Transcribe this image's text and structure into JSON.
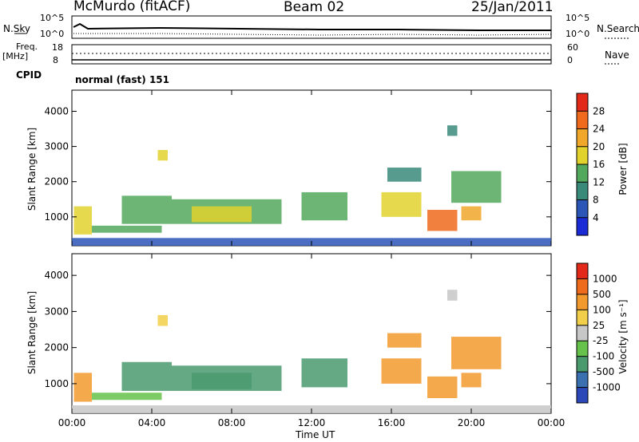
{
  "header": {
    "station": "McMurdo (fitACF)",
    "beam": "Beam 02",
    "date": "25/Jan/2011"
  },
  "strip_labels": {
    "nsky": "N.Sky",
    "nsky_hi": "10^5",
    "nsky_lo": "10^0",
    "nsearch": "N.Search",
    "nsearch_hi": "10^5",
    "nsearch_lo": "10^0",
    "freq_line1": "Freq.",
    "freq_line2": "[MHz]",
    "freq_hi": "18",
    "freq_lo": "8",
    "nave": "Nave",
    "nave_hi": "60",
    "nave_lo": "0",
    "cpid": "CPID",
    "cpid_value": "normal (fast) 151"
  },
  "chart_data": [
    {
      "type": "heatmap",
      "panel": "power",
      "ylabel": "Slant Range [km]",
      "xlabel": "",
      "yticks": [
        "1000",
        "2000",
        "3000",
        "4000"
      ],
      "ylim": [
        180,
        4600
      ],
      "xlim": [
        0,
        24
      ],
      "colorbar_label": "Power [dB]",
      "colorbar_ticks": [
        "4",
        "8",
        "12",
        "16",
        "20",
        "24",
        "28"
      ],
      "colorbar_colors": [
        "#1a2bd6",
        "#2c55b8",
        "#3a8a7a",
        "#52a85c",
        "#e2d22e",
        "#f0a72a",
        "#ef6a1c",
        "#e32a1a"
      ],
      "echo_regions": [
        {
          "t0": 0.1,
          "t1": 1.0,
          "r0": 500,
          "r1": 1300,
          "level": 4
        },
        {
          "t0": 1.0,
          "t1": 4.5,
          "r0": 550,
          "r1": 750,
          "level": 3
        },
        {
          "t0": 2.5,
          "t1": 5.0,
          "r0": 800,
          "r1": 1600,
          "level": 3
        },
        {
          "t0": 4.3,
          "t1": 4.8,
          "r0": 2600,
          "r1": 2900,
          "level": 4
        },
        {
          "t0": 5.0,
          "t1": 10.5,
          "r0": 800,
          "r1": 1500,
          "level": 3
        },
        {
          "t0": 6.0,
          "t1": 9.0,
          "r0": 850,
          "r1": 1300,
          "level": 4
        },
        {
          "t0": 11.5,
          "t1": 13.8,
          "r0": 900,
          "r1": 1700,
          "level": 3
        },
        {
          "t0": 15.5,
          "t1": 17.5,
          "r0": 1000,
          "r1": 1700,
          "level": 4
        },
        {
          "t0": 15.8,
          "t1": 17.5,
          "r0": 2000,
          "r1": 2400,
          "level": 2
        },
        {
          "t0": 17.8,
          "t1": 19.3,
          "r0": 600,
          "r1": 1200,
          "level": 6
        },
        {
          "t0": 19.5,
          "t1": 20.5,
          "r0": 900,
          "r1": 1300,
          "level": 5
        },
        {
          "t0": 19.0,
          "t1": 21.5,
          "r0": 1400,
          "r1": 2300,
          "level": 3
        },
        {
          "t0": 18.8,
          "t1": 19.3,
          "r0": 3300,
          "r1": 3600,
          "level": 2
        },
        {
          "t0": 0.0,
          "t1": 24.0,
          "r0": 180,
          "r1": 400,
          "level": 1
        }
      ]
    },
    {
      "type": "heatmap",
      "panel": "velocity",
      "ylabel": "Slant Range [km]",
      "xlabel": "Time UT",
      "yticks": [
        "1000",
        "2000",
        "3000",
        "4000"
      ],
      "ylim": [
        180,
        4600
      ],
      "xlim": [
        0,
        24
      ],
      "xticks": [
        "00:00",
        "04:00",
        "08:00",
        "12:00",
        "16:00",
        "20:00",
        "00:00"
      ],
      "colorbar_label": "Velocity [m s⁻¹]",
      "colorbar_ticks": [
        "1000",
        "500",
        "100",
        "25",
        "-25",
        "-100",
        "-500",
        "-1000"
      ],
      "colorbar_colors": [
        "#2c48b8",
        "#3a6fb0",
        "#4a9a6e",
        "#66c24a",
        "#c7c7c7",
        "#f2cf4a",
        "#f29a2e",
        "#ee6a1c",
        "#e32a1a"
      ],
      "echo_regions": [
        {
          "t0": 0.1,
          "t1": 1.0,
          "r0": 500,
          "r1": 1300,
          "level": 6
        },
        {
          "t0": 1.0,
          "t1": 4.5,
          "r0": 550,
          "r1": 750,
          "level": 3
        },
        {
          "t0": 2.5,
          "t1": 5.0,
          "r0": 800,
          "r1": 1600,
          "level": 2
        },
        {
          "t0": 4.3,
          "t1": 4.8,
          "r0": 2600,
          "r1": 2900,
          "level": 5
        },
        {
          "t0": 5.0,
          "t1": 10.5,
          "r0": 800,
          "r1": 1500,
          "level": 2
        },
        {
          "t0": 6.0,
          "t1": 9.0,
          "r0": 850,
          "r1": 1300,
          "level": 2
        },
        {
          "t0": 11.5,
          "t1": 13.8,
          "r0": 900,
          "r1": 1700,
          "level": 2
        },
        {
          "t0": 15.5,
          "t1": 17.5,
          "r0": 1000,
          "r1": 1700,
          "level": 6
        },
        {
          "t0": 15.8,
          "t1": 17.5,
          "r0": 2000,
          "r1": 2400,
          "level": 6
        },
        {
          "t0": 17.8,
          "t1": 19.3,
          "r0": 600,
          "r1": 1200,
          "level": 6
        },
        {
          "t0": 19.5,
          "t1": 20.5,
          "r0": 900,
          "r1": 1300,
          "level": 6
        },
        {
          "t0": 19.0,
          "t1": 21.5,
          "r0": 1400,
          "r1": 2300,
          "level": 6
        },
        {
          "t0": 18.8,
          "t1": 19.3,
          "r0": 3300,
          "r1": 3600,
          "level": 4
        },
        {
          "t0": 0.0,
          "t1": 24.0,
          "r0": 180,
          "r1": 400,
          "level": 4
        }
      ]
    }
  ]
}
